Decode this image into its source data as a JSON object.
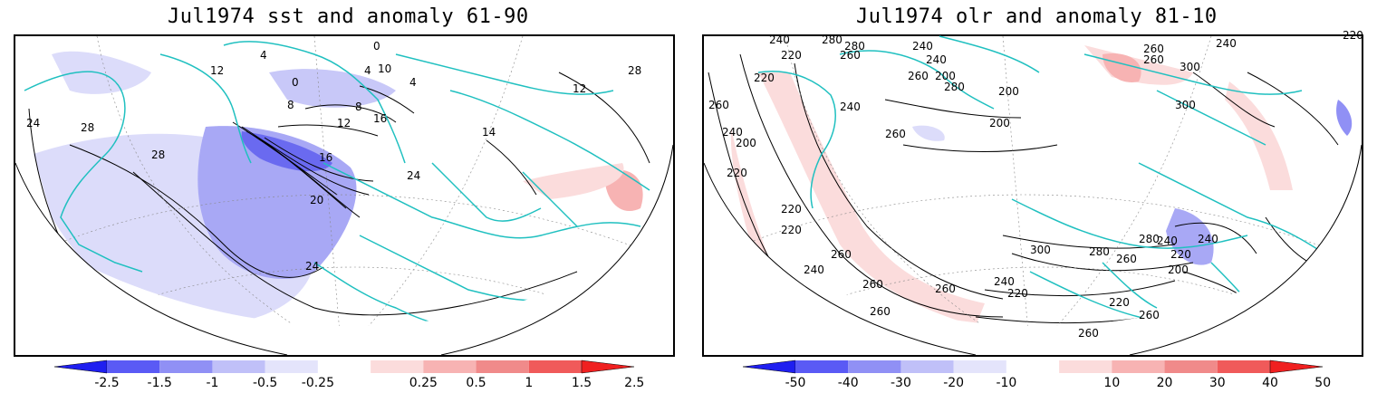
{
  "panels": [
    {
      "title": "Jul1974 sst and anomaly 61-90",
      "contour_labels": [
        "0",
        "4",
        "8",
        "12",
        "16",
        "20",
        "24",
        "28",
        "24",
        "28",
        "12",
        "16",
        "0",
        "4",
        "8",
        "10",
        "4",
        "14",
        "24",
        "28",
        "12"
      ],
      "colorbar": {
        "ticks": [
          "-2.5",
          "-1.5",
          "-1",
          "-0.5",
          "-0.25",
          "0.25",
          "0.5",
          "1",
          "1.5",
          "2.5"
        ],
        "colors": [
          "#1f1ff0",
          "#5a5af5",
          "#9090f5",
          "#c0c0f8",
          "#e4e4fb",
          "#ffffff",
          "#fbdcdc",
          "#f7b3b3",
          "#f08a8a",
          "#f05a5a",
          "#f02020"
        ]
      }
    },
    {
      "title": "Jul1974 olr and anomaly 81-10",
      "contour_labels": [
        "240",
        "280",
        "220",
        "260",
        "280",
        "240",
        "240",
        "200",
        "260",
        "280",
        "200",
        "300",
        "260",
        "220",
        "200",
        "240",
        "260",
        "220",
        "260",
        "240",
        "200",
        "220",
        "220",
        "240",
        "260",
        "280",
        "240",
        "220",
        "260",
        "300",
        "280",
        "260",
        "240",
        "220",
        "200",
        "220",
        "240",
        "260",
        "260",
        "260",
        "260",
        "220",
        "240",
        "260",
        "300"
      ],
      "colorbar": {
        "ticks": [
          "-50",
          "-40",
          "-30",
          "-20",
          "-10",
          "10",
          "20",
          "30",
          "40",
          "50"
        ],
        "colors": [
          "#1f1ff0",
          "#5a5af5",
          "#9090f5",
          "#c0c0f8",
          "#e4e4fb",
          "#ffffff",
          "#fbdcdc",
          "#f7b3b3",
          "#f08a8a",
          "#f05a5a",
          "#f02020"
        ]
      }
    }
  ]
}
